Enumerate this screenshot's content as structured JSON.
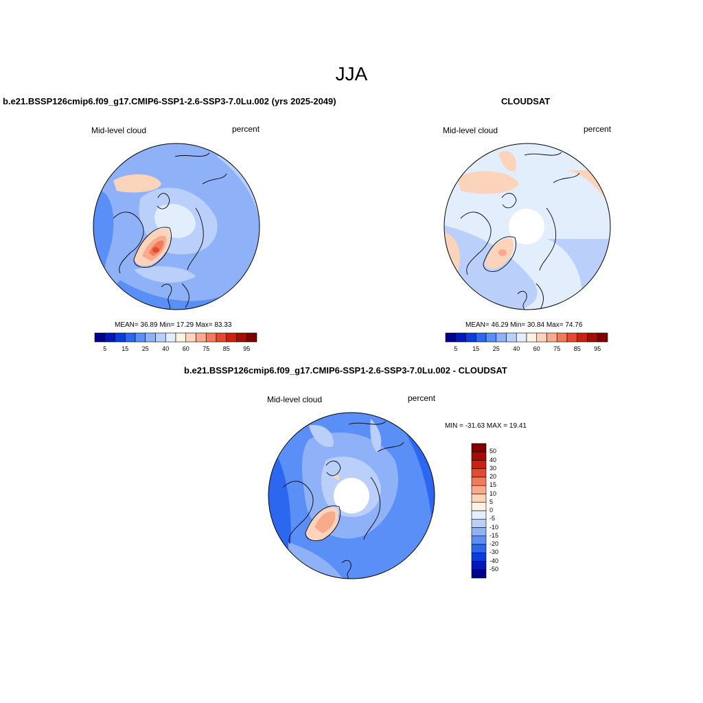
{
  "figure": {
    "season": "JJA"
  },
  "panels": [
    {
      "title": "b.e21.BSSP126cmip6.f09_g17.CMIP6-SSP1-2.6-SSP3-7.0Lu.002 (yrs 2025-2049)",
      "left_label": "Mid-level cloud",
      "right_label": "percent",
      "stats": "MEAN=  36.89  Min=  17.29  Max=  83.33",
      "colorbar_ticks": [
        "5",
        "15",
        "25",
        "40",
        "60",
        "75",
        "85",
        "95"
      ],
      "colors": [
        "#00008c",
        "#0018b8",
        "#0a3ddb",
        "#2c67f0",
        "#5a8ff7",
        "#8fb1f8",
        "#bad0fb",
        "#e3eefd",
        "#fff2e3",
        "#fcd3bb",
        "#f8ab8c",
        "#f17a5c",
        "#e6492f",
        "#cc2110",
        "#a30d02",
        "#7f0000"
      ]
    },
    {
      "title": "CLOUDSAT",
      "left_label": "Mid-level cloud",
      "right_label": "percent",
      "stats": "MEAN=  46.29  Min=  30.84  Max=  74.76",
      "colorbar_ticks": [
        "5",
        "15",
        "25",
        "40",
        "60",
        "75",
        "85",
        "95"
      ]
    },
    {
      "title": "b.e21.BSSP126cmip6.f09_g17.CMIP6-SSP1-2.6-SSP3-7.0Lu.002 - CLOUDSAT",
      "left_label": "Mid-level cloud",
      "right_label": "percent",
      "stats": "MIN = -31.63 MAX =  19.41",
      "colorbar_ticks": [
        "50",
        "40",
        "30",
        "20",
        "15",
        "10",
        "5",
        "0",
        "-5",
        "-10",
        "-15",
        "-20",
        "-30",
        "-40",
        "-50"
      ],
      "colors": [
        "#7f0000",
        "#a30d02",
        "#cc2110",
        "#e6492f",
        "#f17a5c",
        "#f8ab8c",
        "#fcd3bb",
        "#fff2e3",
        "#e3eefd",
        "#bad0fb",
        "#8fb1f8",
        "#5a8ff7",
        "#2c67f0",
        "#0a3ddb",
        "#0018b8",
        "#00008c"
      ]
    }
  ]
}
